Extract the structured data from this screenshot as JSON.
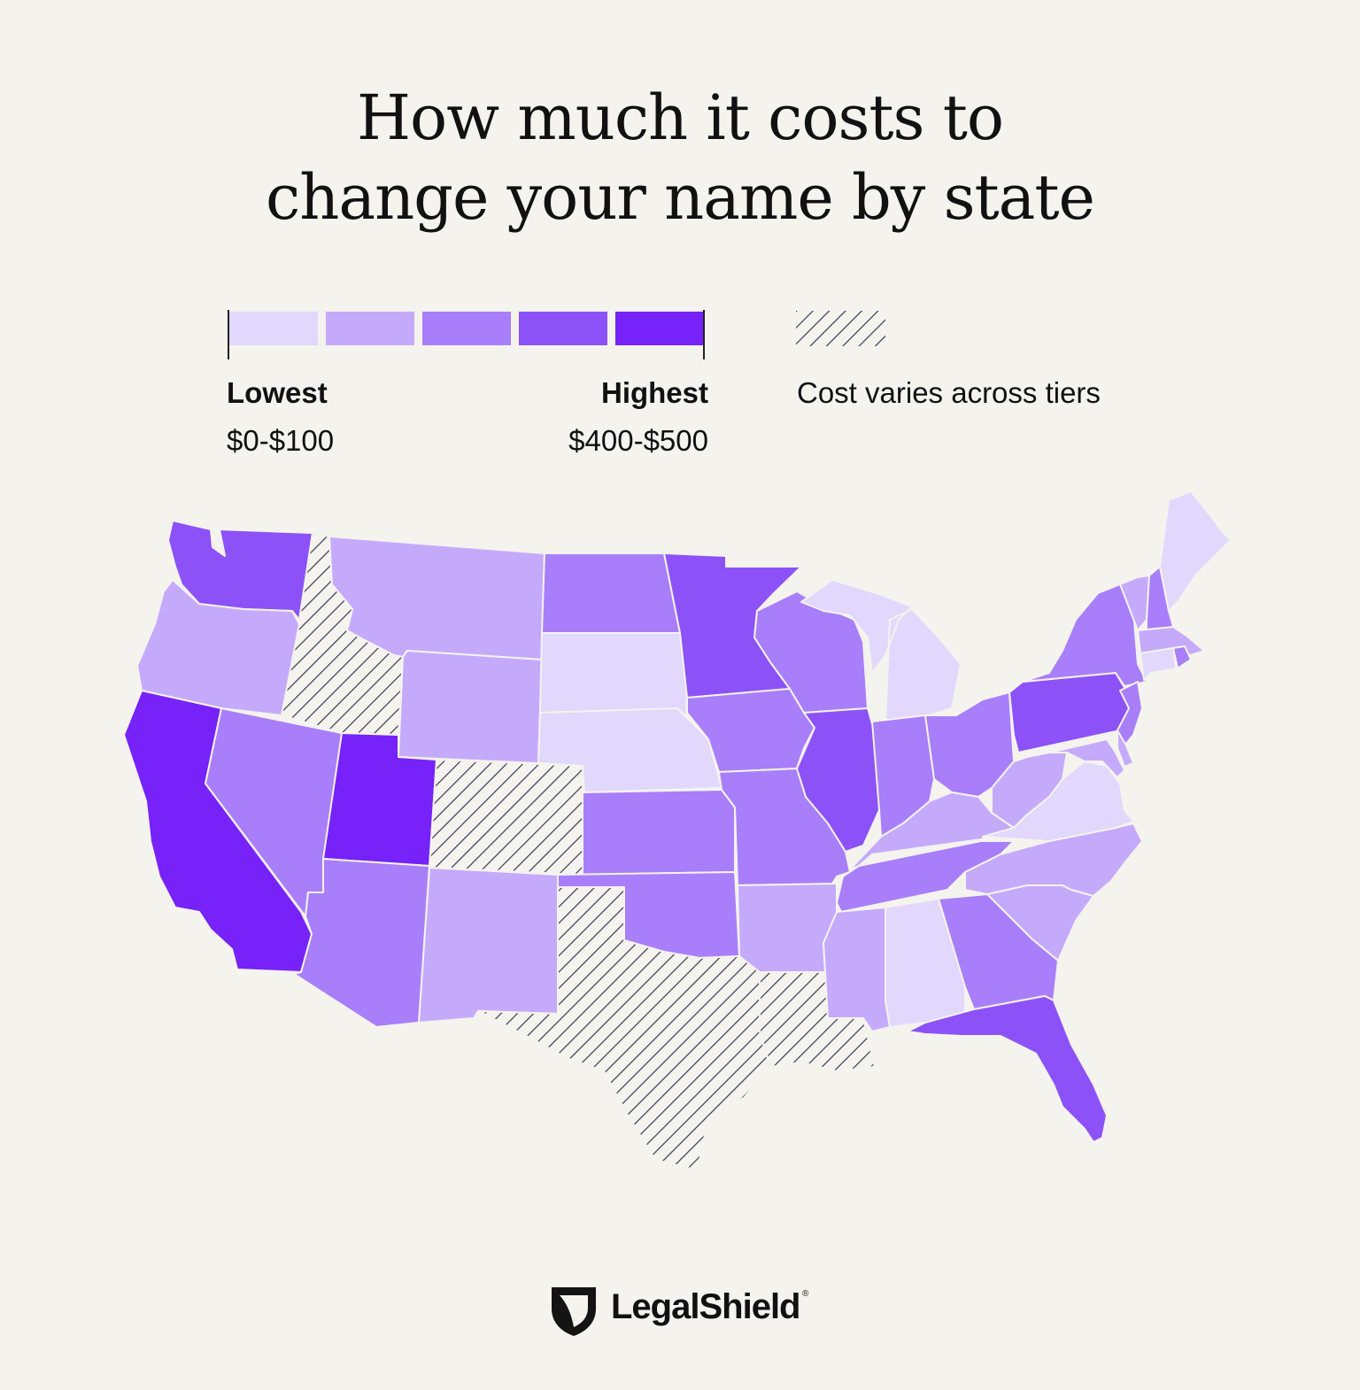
{
  "title": {
    "line1": "How much it costs to",
    "line2": "change your name by state"
  },
  "legend": {
    "scale_colors": [
      "#e2d7fd",
      "#c5aafc",
      "#a97efa",
      "#8c52f8",
      "#7622f8"
    ],
    "low_label": "Lowest",
    "low_range": "$0-$100",
    "high_label": "Highest",
    "high_range": "$400-$500",
    "hatch_label": "Cost varies across tiers"
  },
  "map_data": {
    "type": "choropleth",
    "tier_scale": [
      "$0-$100",
      "$100-$200",
      "$200-$300",
      "$300-$400",
      "$400-$500"
    ],
    "hatch_means": "Cost varies across tiers",
    "states": {
      "WA": 4,
      "OR": 2,
      "CA": 5,
      "NV": 3,
      "ID": "varies",
      "MT": 2,
      "WY": 2,
      "UT": 5,
      "AZ": 3,
      "CO": "varies",
      "NM": 2,
      "ND": 3,
      "SD": 1,
      "NE": 1,
      "KS": 3,
      "OK": 3,
      "TX": "varies",
      "MN": 4,
      "IA": 3,
      "MO": 3,
      "AR": 2,
      "LA": "varies",
      "WI": 3,
      "IL": 4,
      "MI": 1,
      "IN": 3,
      "OH": 3,
      "KY": 2,
      "TN": 3,
      "MS": 2,
      "AL": 1,
      "GA": 3,
      "FL": 4,
      "SC": 2,
      "NC": 2,
      "VA": 1,
      "WV": 2,
      "PA": 4,
      "NY": 3,
      "NJ": 3,
      "DE": 2,
      "MD": 2,
      "VT": 2,
      "NH": 3,
      "ME": 1,
      "MA": 2,
      "CT": 1,
      "RI": 3
    }
  },
  "brand": {
    "name": "LegalShield",
    "mark": "®"
  }
}
